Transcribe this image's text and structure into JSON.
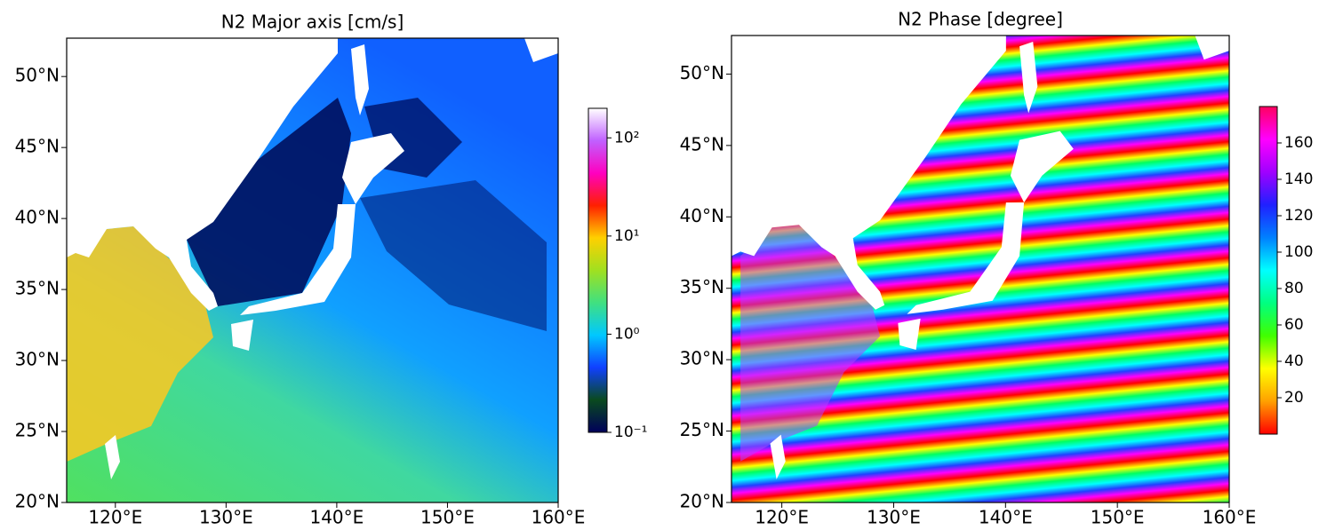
{
  "panels": [
    {
      "title": "N2 Major axis [cm/s]",
      "xlim": [
        115.6,
        160
      ],
      "ylim": [
        20,
        52.7
      ],
      "xticks": [
        {
          "value": 120,
          "label": "120°E"
        },
        {
          "value": 130,
          "label": "130°E"
        },
        {
          "value": 140,
          "label": "140°E"
        },
        {
          "value": 150,
          "label": "150°E"
        },
        {
          "value": 160,
          "label": "160°E"
        }
      ],
      "yticks": [
        {
          "value": 20,
          "label": "20°N"
        },
        {
          "value": 25,
          "label": "25°N"
        },
        {
          "value": 30,
          "label": "30°N"
        },
        {
          "value": 35,
          "label": "35°N"
        },
        {
          "value": 40,
          "label": "40°N"
        },
        {
          "value": 45,
          "label": "45°N"
        },
        {
          "value": 50,
          "label": "50°N"
        }
      ],
      "colorbar": {
        "scale": "log",
        "lim": [
          0.1,
          200
        ],
        "colors": [
          "#00005a",
          "#0a4a1e",
          "#1040ff",
          "#00c8ff",
          "#40e080",
          "#a0e020",
          "#ffd000",
          "#ff2000",
          "#ff00c0",
          "#c060ff",
          "#ffffff"
        ],
        "ticks": [
          {
            "value": 0.1,
            "label": "10⁻¹"
          },
          {
            "value": 1,
            "label": "10⁰"
          },
          {
            "value": 10,
            "label": "10¹"
          },
          {
            "value": 100,
            "label": "10²"
          }
        ]
      }
    },
    {
      "title": "N2 Phase [degree]",
      "xlim": [
        115.5,
        160
      ],
      "ylim": [
        20,
        52.7
      ],
      "xticks": [
        {
          "value": 120,
          "label": "120°E"
        },
        {
          "value": 130,
          "label": "130°E"
        },
        {
          "value": 140,
          "label": "140°E"
        },
        {
          "value": 150,
          "label": "150°E"
        },
        {
          "value": 160,
          "label": "160°E"
        }
      ],
      "yticks": [
        {
          "value": 20,
          "label": "20°N"
        },
        {
          "value": 25,
          "label": "25°N"
        },
        {
          "value": 30,
          "label": "30°N"
        },
        {
          "value": 35,
          "label": "35°N"
        },
        {
          "value": 40,
          "label": "40°N"
        },
        {
          "value": 45,
          "label": "45°N"
        },
        {
          "value": 50,
          "label": "50°N"
        }
      ],
      "colorbar": {
        "scale": "linear",
        "lim": [
          0,
          180
        ],
        "colors": [
          "#ff0000",
          "#ffa000",
          "#ffff00",
          "#40ff00",
          "#00ff80",
          "#00ffff",
          "#0080ff",
          "#2020ff",
          "#a000ff",
          "#ff00ff",
          "#ff0060"
        ],
        "ticks": [
          20,
          40,
          60,
          80,
          100,
          120,
          140,
          160
        ]
      }
    }
  ]
}
